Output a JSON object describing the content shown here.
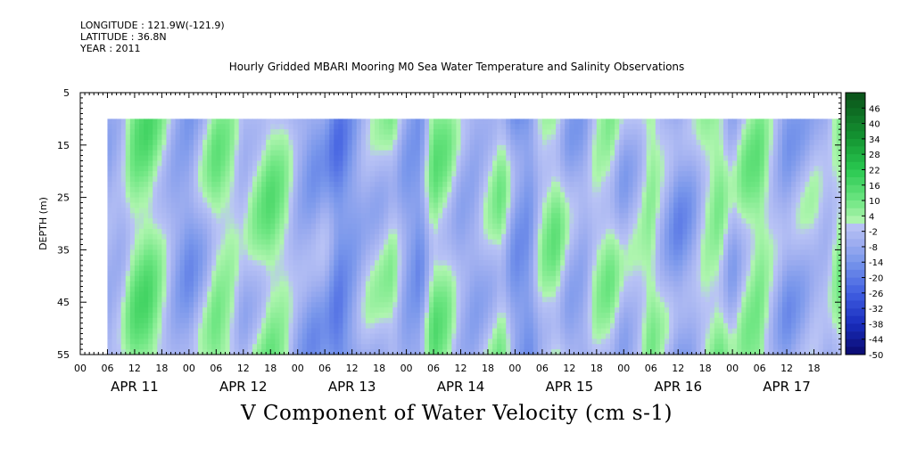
{
  "meta": {
    "longitude": "LONGITUDE : 121.9W(-121.9)",
    "latitude": "LATITUDE : 36.8N",
    "year": "YEAR : 2011"
  },
  "chart_data": {
    "type": "heatmap",
    "title": "Hourly Gridded MBARI Mooring M0 Sea Water Temperature and Salinity Observations",
    "bottom_title": "V Component of Water Velocity (cm s-1)",
    "ylabel": "DEPTH (m)",
    "y_ticks": [
      "5",
      "15",
      "25",
      "35",
      "45",
      "55"
    ],
    "y_range": [
      5,
      55
    ],
    "y_inverted": true,
    "data_depth_range": [
      10,
      55
    ],
    "x_hour_ticks": [
      "00",
      "06",
      "12",
      "18",
      "00",
      "06",
      "12",
      "18",
      "00",
      "06",
      "12",
      "18",
      "00",
      "06",
      "12",
      "18",
      "00",
      "06",
      "12",
      "18",
      "00",
      "06",
      "12",
      "18",
      "00",
      "06",
      "12",
      "18"
    ],
    "x_day_labels": [
      "APR 11",
      "APR 12",
      "APR 13",
      "APR 14",
      "APR 15",
      "APR 16",
      "APR 17"
    ],
    "data_time_range_hours": [
      6,
      168
    ],
    "colorbar": {
      "labels": [
        "46",
        "40",
        "34",
        "28",
        "22",
        "16",
        "10",
        "4",
        "-2",
        "-8",
        "-14",
        "-20",
        "-26",
        "-32",
        "-38",
        "-44",
        "-50"
      ],
      "min": -50,
      "max": 52
    },
    "time_profile": [
      {
        "hour": 6,
        "value": -6
      },
      {
        "hour": 9,
        "value": -4
      },
      {
        "hour": 12,
        "value": 8
      },
      {
        "hour": 15,
        "value": 10
      },
      {
        "hour": 18,
        "value": 2
      },
      {
        "hour": 21,
        "value": -8
      },
      {
        "hour": 24,
        "value": -12
      },
      {
        "hour": 27,
        "value": -4
      },
      {
        "hour": 30,
        "value": 6
      },
      {
        "hour": 33,
        "value": 4
      },
      {
        "hour": 36,
        "value": -4
      },
      {
        "hour": 39,
        "value": 2
      },
      {
        "hour": 42,
        "value": 8
      },
      {
        "hour": 45,
        "value": 4
      },
      {
        "hour": 48,
        "value": -6
      },
      {
        "hour": 51,
        "value": -10
      },
      {
        "hour": 54,
        "value": -8
      },
      {
        "hour": 57,
        "value": -18
      },
      {
        "hour": 60,
        "value": -12
      },
      {
        "hour": 63,
        "value": -4
      },
      {
        "hour": 66,
        "value": -2
      },
      {
        "hour": 69,
        "value": 2
      },
      {
        "hour": 72,
        "value": -10
      },
      {
        "hour": 75,
        "value": -14
      },
      {
        "hour": 78,
        "value": 8
      },
      {
        "hour": 81,
        "value": 4
      },
      {
        "hour": 84,
        "value": -6
      },
      {
        "hour": 87,
        "value": -8
      },
      {
        "hour": 90,
        "value": -2
      },
      {
        "hour": 93,
        "value": 4
      },
      {
        "hour": 96,
        "value": -12
      },
      {
        "hour": 99,
        "value": -14
      },
      {
        "hour": 102,
        "value": 2
      },
      {
        "hour": 105,
        "value": 6
      },
      {
        "hour": 108,
        "value": -6
      },
      {
        "hour": 111,
        "value": -8
      },
      {
        "hour": 114,
        "value": 2
      },
      {
        "hour": 117,
        "value": 4
      },
      {
        "hour": 120,
        "value": -6
      },
      {
        "hour": 123,
        "value": -2
      },
      {
        "hour": 126,
        "value": 6
      },
      {
        "hour": 129,
        "value": -4
      },
      {
        "hour": 132,
        "value": -12
      },
      {
        "hour": 135,
        "value": -8
      },
      {
        "hour": 138,
        "value": 2
      },
      {
        "hour": 141,
        "value": 6
      },
      {
        "hour": 144,
        "value": -6
      },
      {
        "hour": 147,
        "value": 4
      },
      {
        "hour": 150,
        "value": 8
      },
      {
        "hour": 153,
        "value": -2
      },
      {
        "hour": 156,
        "value": -10
      },
      {
        "hour": 159,
        "value": -6
      },
      {
        "hour": 162,
        "value": -2
      },
      {
        "hour": 165,
        "value": -4
      },
      {
        "hour": 168,
        "value": 6
      }
    ]
  }
}
